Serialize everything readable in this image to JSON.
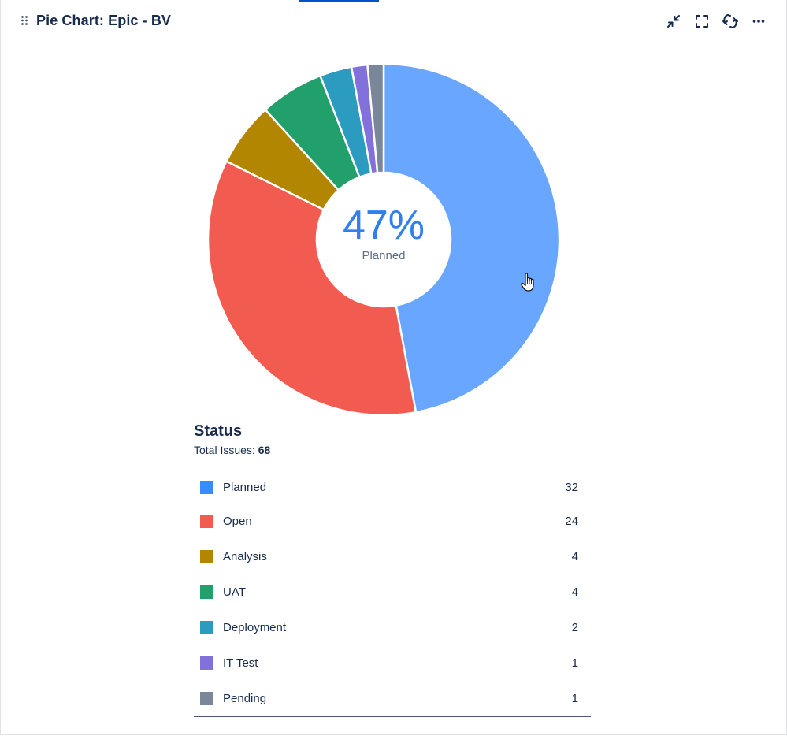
{
  "header": {
    "title": "Pie Chart: Epic - BV",
    "icons": [
      "drag-handle-icon",
      "minimize-icon",
      "fullscreen-icon",
      "refresh-icon",
      "more-icon"
    ]
  },
  "center": {
    "percent": "47%",
    "label": "Planned"
  },
  "legend": {
    "heading": "Status",
    "total_label": "Total Issues:",
    "total_value": "68"
  },
  "chart_data": {
    "type": "pie",
    "donut": true,
    "categories": [
      "Planned",
      "Open",
      "Analysis",
      "UAT",
      "Deployment",
      "IT Test",
      "Pending"
    ],
    "values": [
      32,
      24,
      4,
      4,
      2,
      1,
      1
    ],
    "colors": [
      "#68a6ff",
      "#f25c50",
      "#b38600",
      "#22a06b",
      "#2b9cc0",
      "#8270db",
      "#7a869a"
    ],
    "legend_colors": [
      "#388bff",
      "#f25c50",
      "#b38600",
      "#22a06b",
      "#2b9cc0",
      "#8270db",
      "#7a869a"
    ]
  }
}
